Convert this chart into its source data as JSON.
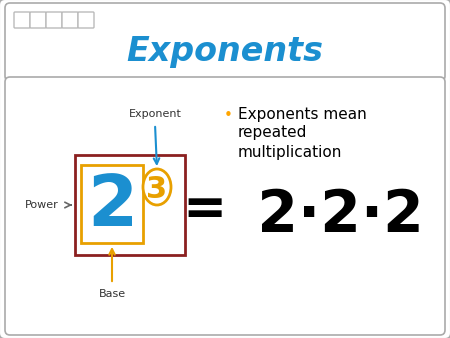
{
  "title": "Exponents",
  "title_color": "#1B8FD0",
  "bg_color": "#D8D8D8",
  "bullet_text_line1": "Exponents mean",
  "bullet_text_line2": "repeated",
  "bullet_text_line3": "multiplication",
  "bullet_dot_color": "#FFA500",
  "eq_equals": "=",
  "eq_222": " 2·2·2",
  "equation_color": "#000000",
  "base_number": "2",
  "base_color": "#1B8FD0",
  "exponent_number": "3",
  "exponent_color": "#E8A000",
  "outer_box_color": "#8B2020",
  "inner_box_color": "#E8A000",
  "exponent_oval_color": "#E8A000",
  "label_exponent": "Exponent",
  "label_base": "Base",
  "label_power": "Power",
  "label_color": "#333333",
  "arrow_color_exponent": "#1B8FD0",
  "arrow_color_base": "#E8A000",
  "arrow_color_power": "#666666",
  "slide_border_color": "#AAAAAA",
  "header_border_color": "#AAAAAA",
  "circles_color": "#BBBBBB"
}
